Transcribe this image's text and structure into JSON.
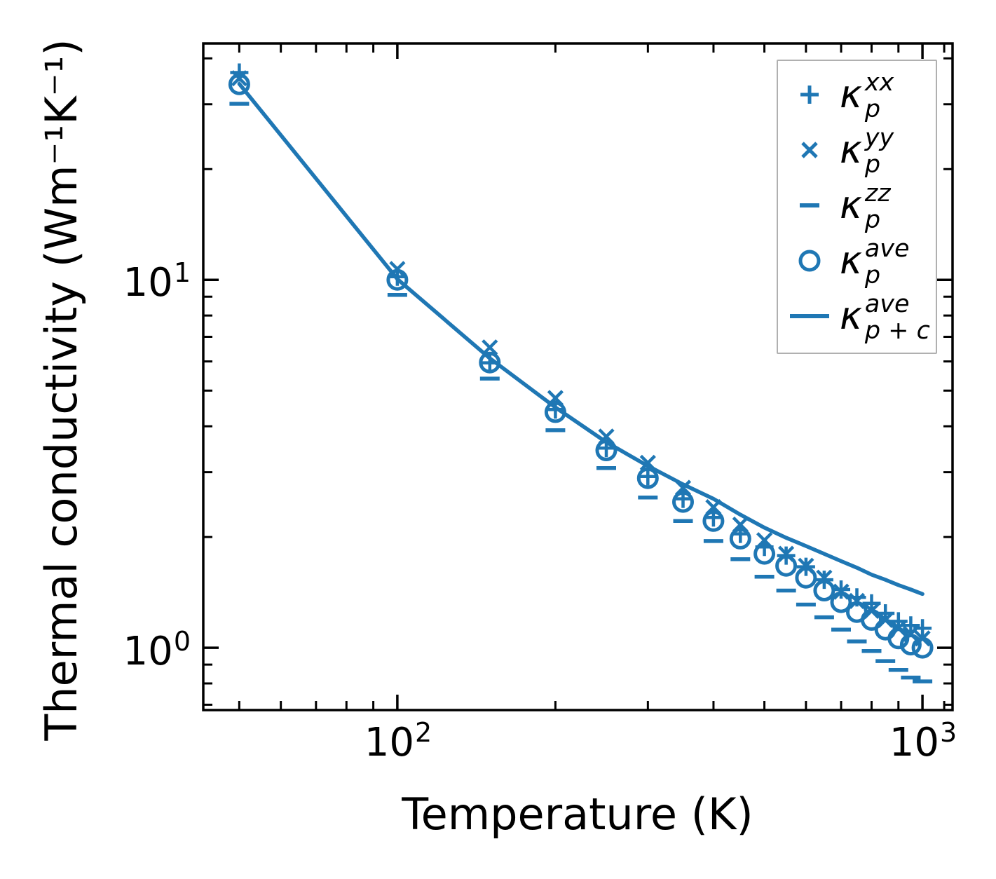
{
  "figure": {
    "xlabel": "Temperature (K)",
    "ylabel": "Thermal conductivity (Wm⁻¹K⁻¹)"
  },
  "axis_ticks": {
    "x": [
      {
        "base": "10",
        "exp": "2",
        "value": 100
      },
      {
        "base": "10",
        "exp": "3",
        "value": 1000
      }
    ],
    "y": [
      {
        "base": "10",
        "exp": "1",
        "value": 10
      },
      {
        "base": "10",
        "exp": "0",
        "value": 1
      }
    ]
  },
  "legend": {
    "entries": [
      {
        "marker": "plus",
        "base": "κ",
        "sup": "xx",
        "sub": "p"
      },
      {
        "marker": "cross",
        "base": "κ",
        "sup": "yy",
        "sub": "p"
      },
      {
        "marker": "dash",
        "base": "κ",
        "sup": "zz",
        "sub": "p"
      },
      {
        "marker": "circle",
        "base": "κ",
        "sup": "ave",
        "sub": "p"
      },
      {
        "marker": "line",
        "base": "κ",
        "sup": "ave",
        "sub": "p + c"
      }
    ]
  },
  "chart_data": {
    "type": "line",
    "xscale": "log",
    "yscale": "log",
    "xlabel": "Temperature (K)",
    "ylabel": "Thermal conductivity (Wm⁻¹K⁻¹)",
    "xlim": [
      42.7,
      1141
    ],
    "ylim": [
      0.677,
      43.9
    ],
    "xticks_major": [
      100,
      1000
    ],
    "xticks_minor": [
      50,
      60,
      70,
      80,
      90,
      200,
      300,
      400,
      500,
      600,
      700,
      800,
      900,
      1100
    ],
    "yticks_major": [
      1,
      10
    ],
    "yticks_minor": [
      0.7,
      0.8,
      0.9,
      2,
      3,
      4,
      5,
      6,
      7,
      8,
      9,
      20,
      30,
      40
    ],
    "grid": false,
    "legend_position": "upper right",
    "color": "#1f77b4",
    "x": [
      50,
      100,
      150,
      200,
      250,
      300,
      350,
      400,
      450,
      500,
      550,
      600,
      650,
      700,
      750,
      800,
      850,
      900,
      950,
      1000
    ],
    "series": [
      {
        "name": "kappa_p_xx",
        "label": "κ_p^xx",
        "marker": "plus",
        "values": [
          36.6,
          10.2,
          5.95,
          4.44,
          3.49,
          2.92,
          2.54,
          2.26,
          2.04,
          1.88,
          1.78,
          1.66,
          1.53,
          1.44,
          1.37,
          1.32,
          1.24,
          1.18,
          1.15,
          1.13
        ]
      },
      {
        "name": "kappa_p_yy",
        "label": "κ_p^yy",
        "marker": "cross",
        "values": [
          35.3,
          10.7,
          6.55,
          4.77,
          3.75,
          3.18,
          2.72,
          2.41,
          2.16,
          1.96,
          1.8,
          1.67,
          1.55,
          1.42,
          1.34,
          1.26,
          1.19,
          1.13,
          1.09,
          1.06
        ]
      },
      {
        "name": "kappa_p_zz",
        "label": "κ_p^zz",
        "marker": "dash",
        "values": [
          30.1,
          9.1,
          5.39,
          3.9,
          3.08,
          2.56,
          2.21,
          1.95,
          1.74,
          1.56,
          1.43,
          1.31,
          1.21,
          1.12,
          1.04,
          0.98,
          0.92,
          0.87,
          0.83,
          0.81
        ]
      },
      {
        "name": "kappa_p_ave",
        "label": "κ_p^ave",
        "marker": "circle",
        "values": [
          34.0,
          10.0,
          5.96,
          4.37,
          3.44,
          2.89,
          2.49,
          2.21,
          1.98,
          1.8,
          1.67,
          1.55,
          1.43,
          1.33,
          1.25,
          1.19,
          1.12,
          1.06,
          1.02,
          1.0
        ]
      },
      {
        "name": "kappa_p_plus_c_ave",
        "label": "κ_p+c^ave",
        "marker": "line",
        "values": [
          34.1,
          10.05,
          6.12,
          4.5,
          3.62,
          3.12,
          2.78,
          2.54,
          2.3,
          2.12,
          1.99,
          1.89,
          1.8,
          1.72,
          1.65,
          1.58,
          1.53,
          1.48,
          1.44,
          1.4
        ]
      }
    ]
  }
}
